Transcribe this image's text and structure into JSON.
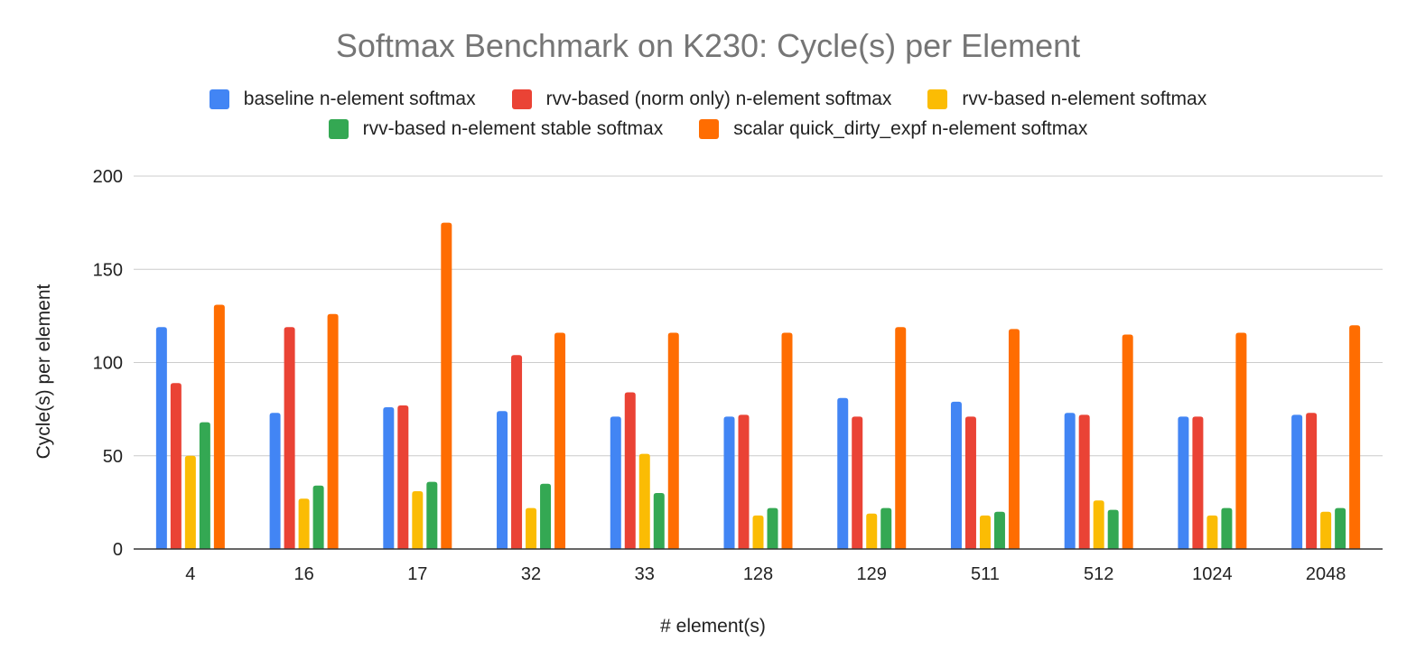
{
  "colors": {
    "background": "#ffffff",
    "title": "#757575",
    "grid": "#cccccc",
    "axis": "#333333",
    "text": "#222222"
  },
  "chart_data": {
    "type": "bar",
    "title": "Softmax Benchmark on K230: Cycle(s) per Element",
    "xlabel": "# element(s)",
    "ylabel": "Cycle(s) per element",
    "ylim": [
      0,
      200
    ],
    "yticks": [
      0,
      50,
      100,
      150,
      200
    ],
    "grid": true,
    "legend_position": "top",
    "categories": [
      "4",
      "16",
      "17",
      "32",
      "33",
      "128",
      "129",
      "511",
      "512",
      "1024",
      "2048"
    ],
    "series": [
      {
        "name": "baseline n-element softmax",
        "color": "#4285f4",
        "values": [
          119,
          73,
          76,
          74,
          71,
          71,
          81,
          79,
          73,
          71,
          72
        ]
      },
      {
        "name": "rvv-based (norm only) n-element softmax",
        "color": "#ea4335",
        "values": [
          89,
          119,
          77,
          104,
          84,
          72,
          71,
          71,
          72,
          71,
          73
        ]
      },
      {
        "name": "rvv-based n-element softmax",
        "color": "#fbbc04",
        "values": [
          50,
          27,
          31,
          22,
          51,
          18,
          19,
          18,
          26,
          18,
          20
        ]
      },
      {
        "name": "rvv-based n-element stable softmax",
        "color": "#34a853",
        "values": [
          68,
          34,
          36,
          35,
          30,
          22,
          22,
          20,
          21,
          22,
          22
        ]
      },
      {
        "name": "scalar quick_dirty_expf n-element softmax",
        "color": "#ff6d01",
        "values": [
          131,
          126,
          175,
          116,
          116,
          116,
          119,
          118,
          115,
          116,
          120
        ]
      }
    ]
  }
}
